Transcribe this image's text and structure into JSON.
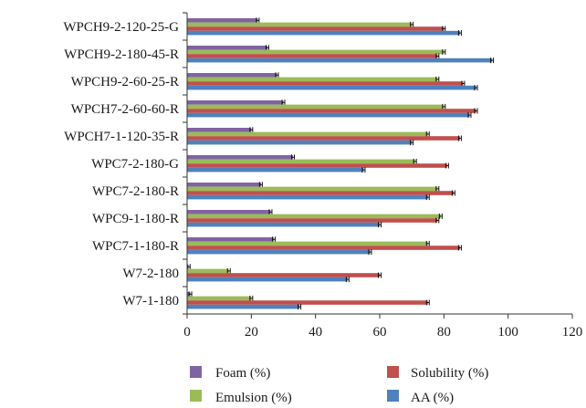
{
  "chart_data": {
    "type": "bar",
    "orientation": "horizontal",
    "categories": [
      "WPCH9-2-120-25-G",
      "WPCH9-2-180-45-R",
      "WPCH9-2-60-25-R",
      "WPCH7-2-60-60-R",
      "WPCH7-1-120-35-R",
      "WPC7-2-180-G",
      "WPC7-2-180-R",
      "WPC9-1-180-R",
      "WPC7-1-180-R",
      "W7-2-180",
      "W7-1-180"
    ],
    "series": [
      {
        "name": "Foam (%)",
        "color": "#8064a2",
        "values": [
          22,
          25,
          28,
          30,
          20,
          33,
          23,
          26,
          27,
          0.5,
          1
        ]
      },
      {
        "name": "Emulsion (%)",
        "color": "#9bbb59",
        "values": [
          70,
          80,
          78,
          80,
          75,
          71,
          78,
          79,
          75,
          13,
          20
        ]
      },
      {
        "name": "Solubility (%)",
        "color": "#c0504d",
        "values": [
          80,
          78,
          86,
          90,
          85,
          81,
          83,
          78,
          85,
          60,
          75
        ]
      },
      {
        "name": "AA (%)",
        "color": "#4f81bd",
        "values": [
          85,
          95,
          90,
          88,
          70,
          55,
          75,
          60,
          57,
          50,
          35
        ]
      }
    ],
    "title": "",
    "xlabel": "",
    "ylabel": "",
    "xlim": [
      0,
      120
    ],
    "x_ticks": [
      "0",
      "20",
      "40",
      "60",
      "80",
      "100",
      "120"
    ],
    "error_bars": true,
    "grid": false,
    "legend_position": "bottom"
  },
  "legend": [
    {
      "label": "Foam (%)",
      "color": "#8064a2"
    },
    {
      "label": "Solubility (%)",
      "color": "#c0504d"
    },
    {
      "label": "Emulsion (%)",
      "color": "#9bbb59"
    },
    {
      "label": "AA (%)",
      "color": "#4f81bd"
    }
  ]
}
